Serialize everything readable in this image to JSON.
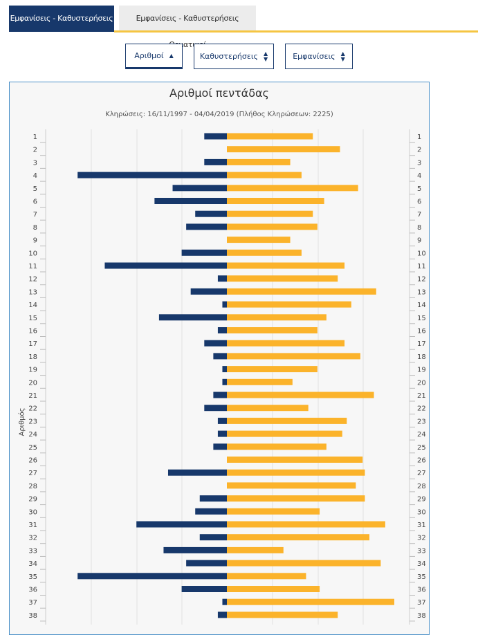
{
  "tabs": {
    "active_label": "Εμφανίσεις - Καθυστερήσεις",
    "inactive_label": "Εμφανίσεις - Καθυστερήσεις Θεματικοί"
  },
  "sort_buttons": {
    "numbers": "Αριθμοί",
    "delays": "Καθυστερήσεις",
    "appearances": "Εμφανίσεις"
  },
  "colors": {
    "navy": "#17386b",
    "yellow": "#fbb32b",
    "accent": "#f5c542"
  },
  "chart_data": {
    "type": "bar",
    "orientation": "horizontal-diverging",
    "title": "Αριθμοί πεντάδας",
    "subtitle": "Κληρώσεις: 16/11/1997 - 04/04/2019 (Πλήθος Κληρώσεων: 2225)",
    "ylabel": "Αριθμός",
    "categories": [
      "1",
      "2",
      "3",
      "4",
      "5",
      "6",
      "7",
      "8",
      "9",
      "10",
      "11",
      "12",
      "13",
      "14",
      "15",
      "16",
      "17",
      "18",
      "19",
      "20",
      "21",
      "22",
      "23",
      "24",
      "25",
      "26",
      "27",
      "28",
      "29",
      "30",
      "31",
      "32",
      "33",
      "34",
      "35",
      "36",
      "37",
      "38"
    ],
    "series": [
      {
        "values": [
          10,
          0,
          10,
          66,
          24,
          32,
          14,
          18,
          0,
          20,
          54,
          4,
          16,
          2,
          30,
          4,
          10,
          6,
          2,
          2,
          6,
          10,
          4,
          4,
          6,
          0,
          26,
          0,
          12,
          14,
          40,
          12,
          28,
          18,
          66,
          20,
          2,
          4
        ]
      },
      {
        "values": [
          38,
          50,
          28,
          33,
          58,
          43,
          38,
          40,
          28,
          33,
          52,
          49,
          66,
          55,
          44,
          40,
          52,
          59,
          40,
          29,
          65,
          36,
          53,
          51,
          44,
          60,
          61,
          57,
          61,
          41,
          70,
          63,
          25,
          68,
          35,
          41,
          74,
          49
        ]
      }
    ],
    "grid": "vertical"
  }
}
